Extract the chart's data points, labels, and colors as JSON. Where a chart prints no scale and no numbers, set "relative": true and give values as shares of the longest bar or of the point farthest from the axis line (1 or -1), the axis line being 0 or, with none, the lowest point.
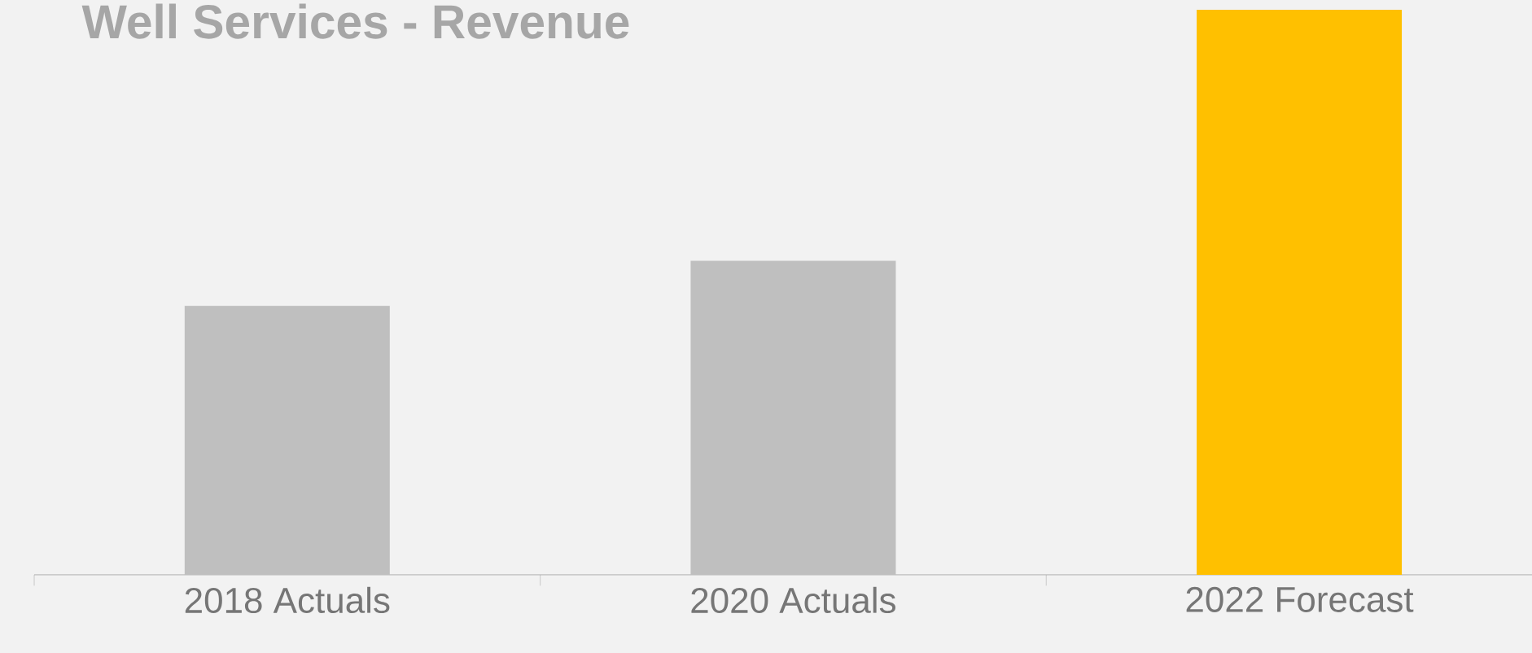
{
  "chart_data": {
    "type": "bar",
    "title": "Well Services - Revenue",
    "relative": true,
    "categories": [
      "2018 Actuals",
      "2020 Actuals",
      "2022 Forecast"
    ],
    "values": [
      0.476,
      0.556,
      1
    ],
    "colors": [
      "#bfbfbf",
      "#bfbfbf",
      "#ffc000"
    ]
  }
}
